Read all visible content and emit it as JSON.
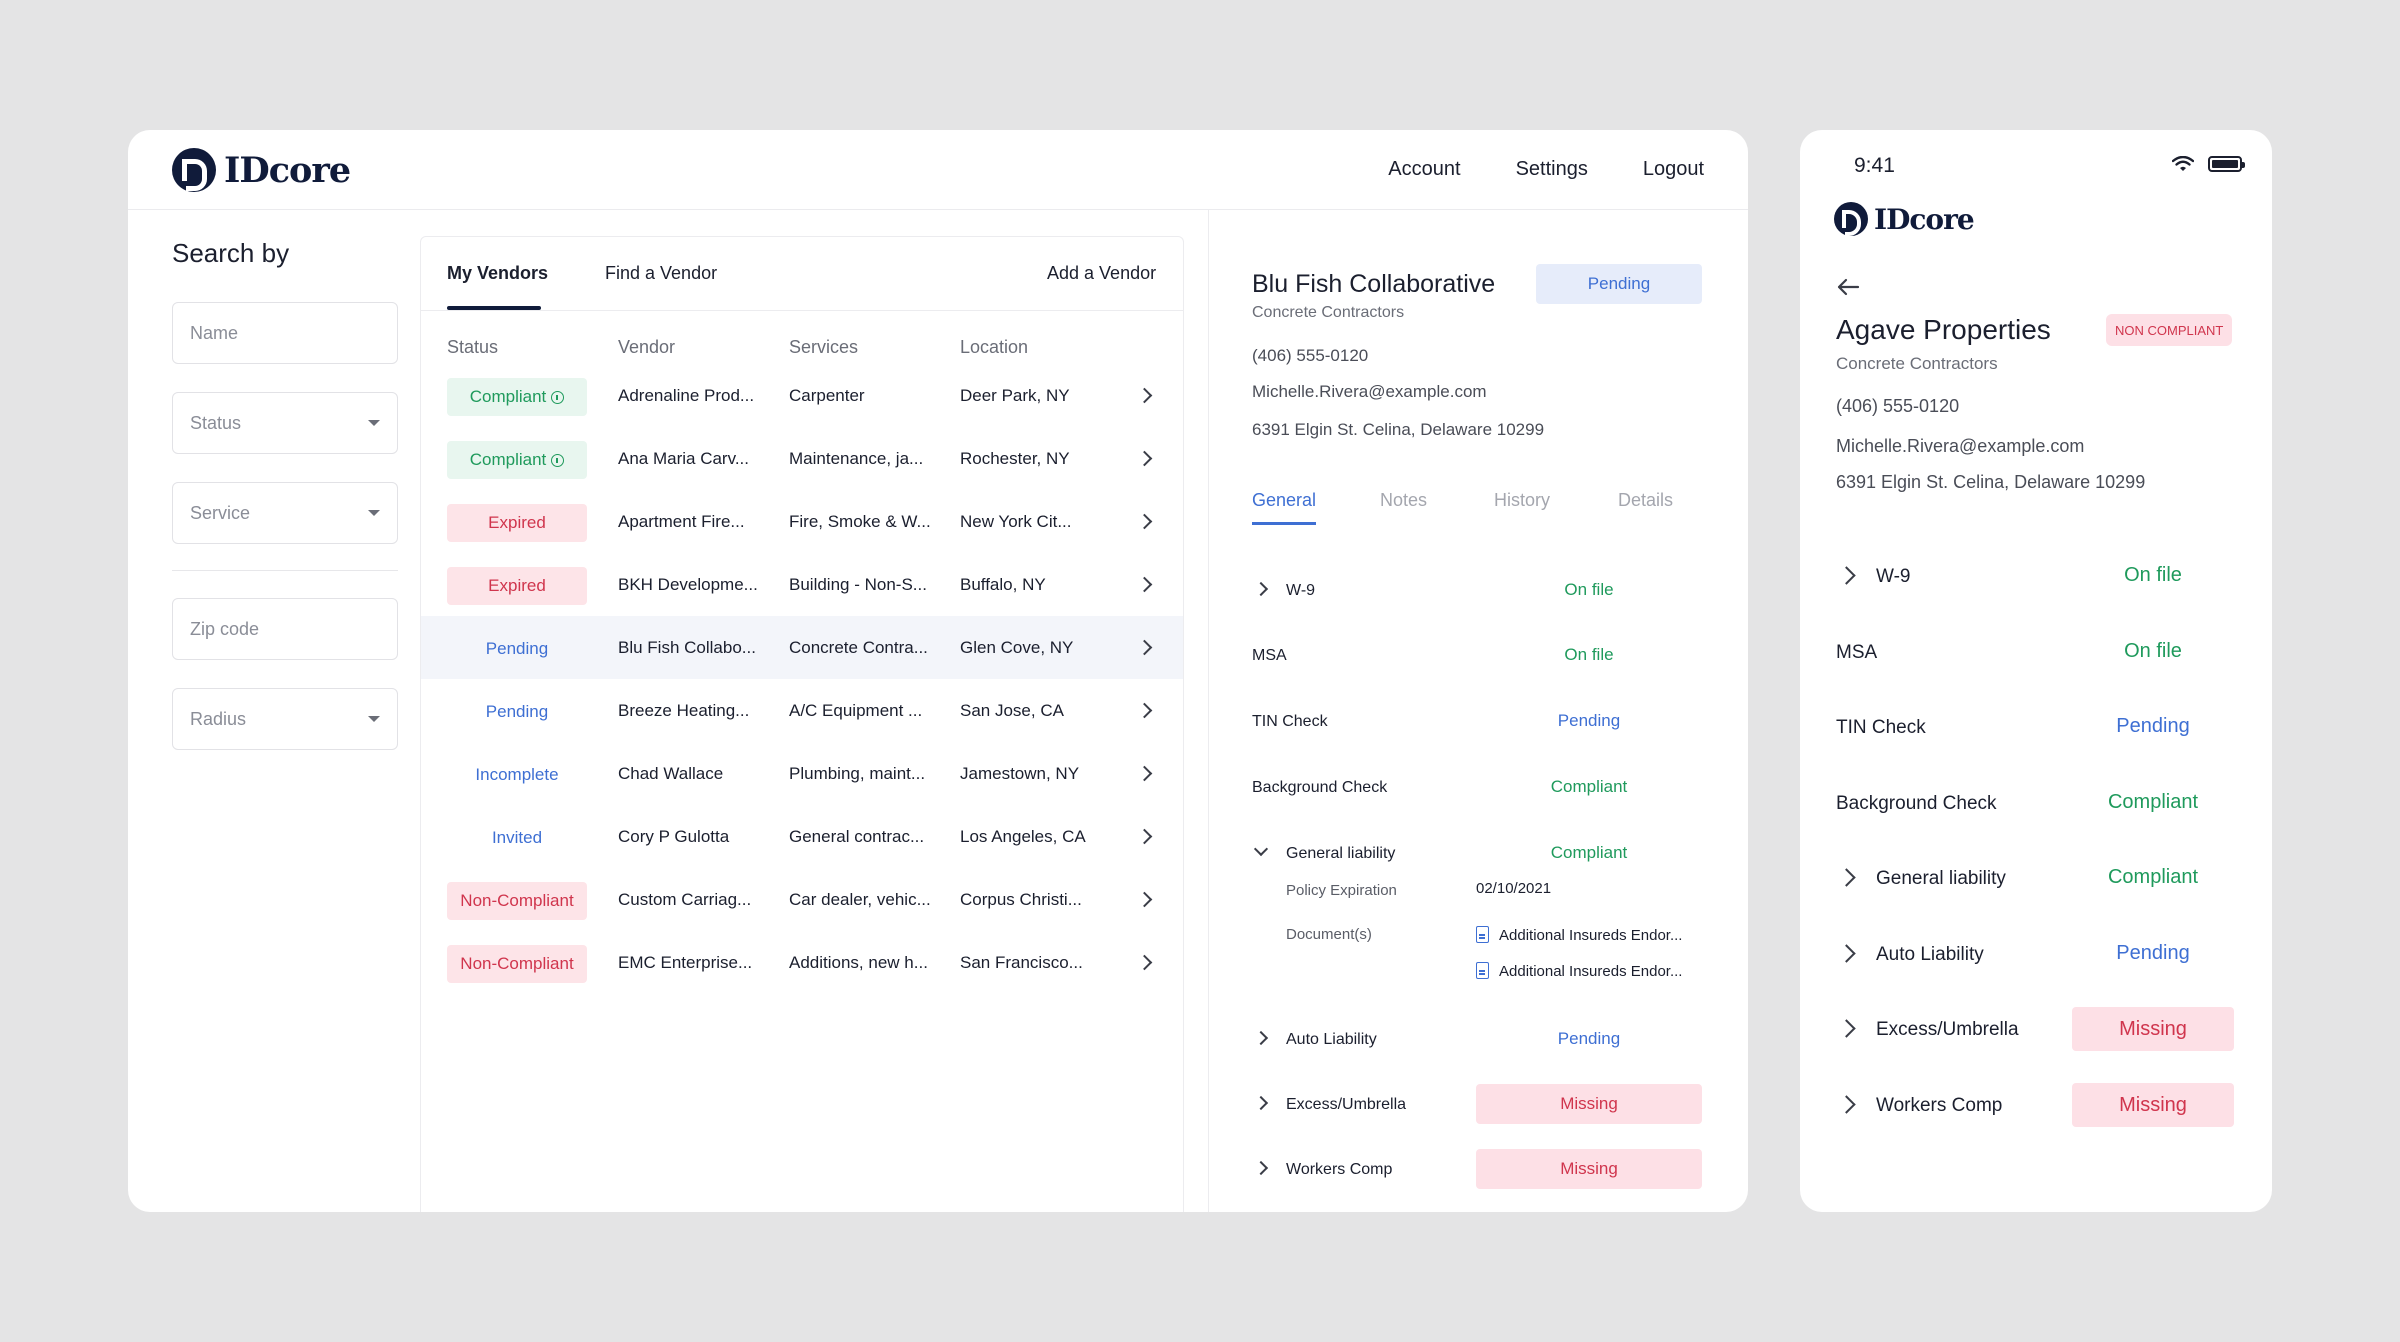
{
  "app": {
    "logo_text": "IDcore"
  },
  "header": {
    "nav": [
      "Account",
      "Settings",
      "Logout"
    ]
  },
  "search": {
    "title": "Search by",
    "fields": [
      {
        "placeholder": "Name",
        "type": "text"
      },
      {
        "placeholder": "Status",
        "type": "select"
      },
      {
        "placeholder": "Service",
        "type": "select"
      },
      {
        "placeholder": "Zip code",
        "type": "text"
      },
      {
        "placeholder": "Radius",
        "type": "select"
      }
    ]
  },
  "vendors": {
    "tabs": [
      "My Vendors",
      "Find a Vendor"
    ],
    "add_label": "Add a Vendor",
    "columns": [
      "Status",
      "Vendor",
      "Services",
      "Location"
    ],
    "rows": [
      {
        "status": "Compliant",
        "kind": "compliant",
        "vendor": "Adrenaline Prod...",
        "services": "Carpenter",
        "location": "Deer Park, NY"
      },
      {
        "status": "Compliant",
        "kind": "compliant",
        "vendor": "Ana Maria Carv...",
        "services": "Maintenance, ja...",
        "location": "Rochester, NY"
      },
      {
        "status": "Expired",
        "kind": "expired",
        "vendor": "Apartment Fire...",
        "services": "Fire, Smoke & W...",
        "location": "New York Cit..."
      },
      {
        "status": "Expired",
        "kind": "expired",
        "vendor": "BKH Developme...",
        "services": "Building - Non-S...",
        "location": "Buffalo, NY"
      },
      {
        "status": "Pending",
        "kind": "pending",
        "vendor": "Blu Fish Collabo...",
        "services": "Concrete Contra...",
        "location": "Glen Cove, NY",
        "selected": true
      },
      {
        "status": "Pending",
        "kind": "pending",
        "vendor": "Breeze Heating...",
        "services": "A/C Equipment ...",
        "location": "San Jose, CA"
      },
      {
        "status": "Incomplete",
        "kind": "incomplete",
        "vendor": "Chad Wallace",
        "services": "Plumbing, maint...",
        "location": "Jamestown, NY"
      },
      {
        "status": "Invited",
        "kind": "invited",
        "vendor": "Cory P Gulotta",
        "services": "General contrac...",
        "location": "Los Angeles, CA"
      },
      {
        "status": "Non-Compliant",
        "kind": "noncomp",
        "vendor": "Custom Carriag...",
        "services": "Car dealer, vehic...",
        "location": "Corpus Christi..."
      },
      {
        "status": "Non-Compliant",
        "kind": "noncomp",
        "vendor": "EMC Enterprise...",
        "services": "Additions, new h...",
        "location": "San Francisco..."
      }
    ]
  },
  "detail": {
    "name": "Blu Fish Collaborative",
    "status": "Pending",
    "category": "Concrete Contractors",
    "phone": "(406) 555-0120",
    "email": "Michelle.Rivera@example.com",
    "address": "6391 Elgin St. Celina, Delaware 10299",
    "tabs": [
      "General",
      "Notes",
      "History",
      "Details"
    ],
    "items": [
      {
        "label": "W-9",
        "value": "On file",
        "tone": "green",
        "chevron": "right"
      },
      {
        "label": "MSA",
        "value": "On file",
        "tone": "green"
      },
      {
        "label": "TIN Check",
        "value": "Pending",
        "tone": "blue"
      },
      {
        "label": "Background Check",
        "value": "Compliant",
        "tone": "green"
      },
      {
        "label": "General liability",
        "value": "Compliant",
        "tone": "green",
        "chevron": "down"
      },
      {
        "label": "Auto Liability",
        "value": "Pending",
        "tone": "blue",
        "chevron": "right"
      },
      {
        "label": "Excess/Umbrella",
        "value": "Missing",
        "tone": "pill",
        "chevron": "right"
      },
      {
        "label": "Workers Comp",
        "value": "Missing",
        "tone": "pill",
        "chevron": "right"
      }
    ],
    "policy": {
      "expiration_label": "Policy Expiration",
      "expiration_value": "02/10/2021",
      "documents_label": "Document(s)",
      "documents": [
        "Additional Insureds Endor...",
        "Additional Insureds Endor..."
      ]
    }
  },
  "mobile": {
    "time": "9:41",
    "name": "Agave Properties",
    "badge": "NON COMPLIANT",
    "category": "Concrete Contractors",
    "phone": "(406) 555-0120",
    "email": "Michelle.Rivera@example.com",
    "address": "6391 Elgin St. Celina, Delaware 10299",
    "items": [
      {
        "label": "W-9",
        "value": "On file",
        "tone": "green",
        "chevron": true
      },
      {
        "label": "MSA",
        "value": "On file",
        "tone": "green"
      },
      {
        "label": "TIN Check",
        "value": "Pending",
        "tone": "blue"
      },
      {
        "label": "Background Check",
        "value": "Compliant",
        "tone": "green"
      },
      {
        "label": "General liability",
        "value": "Compliant",
        "tone": "green",
        "chevron": true
      },
      {
        "label": "Auto Liability",
        "value": "Pending",
        "tone": "blue",
        "chevron": true
      },
      {
        "label": "Excess/Umbrella",
        "value": "Missing",
        "tone": "pill",
        "chevron": true
      },
      {
        "label": "Workers Comp",
        "value": "Missing",
        "tone": "pill",
        "chevron": true
      }
    ]
  },
  "colors": {
    "brand": "#101b3a",
    "green": "#1f9a5c",
    "blue": "#3e6fd3",
    "red": "#d0354d"
  }
}
